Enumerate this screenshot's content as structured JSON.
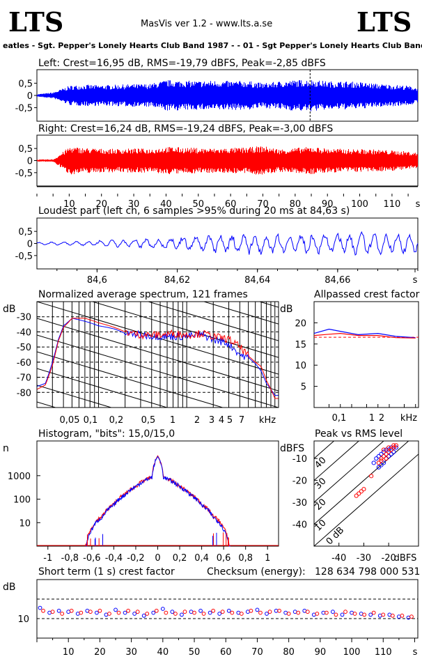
{
  "header": {
    "logo_left": "LTS",
    "logo_right": "LTS",
    "app_title": "MasVis ver 1.2 - www.lts.a.se",
    "filename": "eatles - Sgt. Pepper's Lonely Hearts Club Band 1987 -  - 01 - Sgt Pepper's Lonely Hearts Club Band.wa"
  },
  "colors": {
    "left": "#0000ff",
    "right": "#ff0000",
    "axis": "#000000",
    "grid": "#000000"
  },
  "chart_data": [
    {
      "id": "left-waveform",
      "type": "area",
      "title": "Left: Crest=16,95 dB, RMS=-19,79 dBFS, Peak=-2,85 dBFS",
      "y_ticks": [
        "0,5",
        "0",
        "-0,5"
      ],
      "ylim": [
        -1,
        1
      ],
      "xlim": [
        0,
        118
      ],
      "series": [
        {
          "x": [
            0,
            5,
            10,
            15,
            20,
            25,
            30,
            35,
            40,
            45,
            50,
            55,
            60,
            65,
            70,
            75,
            80,
            85,
            90,
            95,
            100,
            105,
            110,
            115,
            118
          ],
          "envelope": [
            0.05,
            0.12,
            0.38,
            0.42,
            0.4,
            0.42,
            0.44,
            0.45,
            0.6,
            0.58,
            0.56,
            0.58,
            0.56,
            0.57,
            0.48,
            0.55,
            0.6,
            0.62,
            0.55,
            0.55,
            0.52,
            0.46,
            0.42,
            0.38,
            0.3
          ]
        }
      ],
      "markers": [
        {
          "x": 84.63
        }
      ]
    },
    {
      "id": "right-waveform",
      "type": "area",
      "title": "Right: Crest=16,24 dB, RMS=-19,24 dBFS, Peak=-3,00 dBFS",
      "y_ticks": [
        "0,5",
        "0",
        "-0,5"
      ],
      "x_ticks": [
        "10",
        "20",
        "30",
        "40",
        "50",
        "60",
        "70",
        "80",
        "90",
        "100",
        "110",
        "s"
      ],
      "ylim": [
        -1,
        1
      ],
      "xlim": [
        0,
        118
      ],
      "series": [
        {
          "x": [
            0,
            5,
            10,
            15,
            20,
            25,
            30,
            35,
            40,
            45,
            50,
            55,
            60,
            65,
            70,
            75,
            80,
            85,
            90,
            95,
            100,
            105,
            110,
            115,
            118
          ],
          "envelope": [
            0.04,
            0.05,
            0.55,
            0.5,
            0.47,
            0.46,
            0.48,
            0.47,
            0.55,
            0.52,
            0.5,
            0.48,
            0.5,
            0.52,
            0.58,
            0.45,
            0.5,
            0.55,
            0.48,
            0.46,
            0.45,
            0.44,
            0.4,
            0.36,
            0.3
          ]
        }
      ]
    },
    {
      "id": "loudest-part",
      "type": "line",
      "title": "Loudest part (left  ch, 6 samples >95% during 20 ms at 84,63 s)",
      "y_ticks": [
        "0,5",
        "0",
        "-0,5"
      ],
      "x_ticks": [
        "84,6",
        "84,62",
        "84,64",
        "84,66",
        "s"
      ],
      "xlim": [
        84.585,
        84.68
      ],
      "ylim": [
        -1,
        1
      ],
      "series": [
        {
          "x": [
            84.585,
            84.59,
            84.595,
            84.6,
            84.605,
            84.61,
            84.615,
            84.62,
            84.625,
            84.63,
            84.635,
            84.64,
            84.645,
            84.65,
            84.655,
            84.66,
            84.665,
            84.67,
            84.675,
            84.68
          ],
          "amp": [
            0.05,
            0.07,
            0.09,
            0.12,
            0.16,
            0.18,
            0.22,
            0.28,
            0.35,
            0.42,
            0.45,
            0.45,
            0.42,
            0.4,
            0.45,
            0.5,
            0.48,
            0.45,
            0.42,
            0.4
          ]
        }
      ]
    },
    {
      "id": "average-spectrum",
      "type": "line",
      "title": "Normalized average spectrum, 121 frames",
      "ylabel": "dB",
      "xlabel": "kHz",
      "y_ticks": [
        "-30",
        "-40",
        "-50",
        "-60",
        "-70",
        "-80"
      ],
      "x_ticks": [
        "0,05",
        "0,1",
        "0,2",
        "0,5",
        "1",
        "2",
        "3",
        "4",
        "5",
        "7",
        "kHz"
      ],
      "x_scale": "log",
      "xlim": [
        0.02,
        11
      ],
      "ylim": [
        -90,
        -20
      ],
      "series": [
        {
          "name_hidden": "left",
          "x": [
            0.02,
            0.025,
            0.03,
            0.035,
            0.04,
            0.05,
            0.07,
            0.1,
            0.15,
            0.2,
            0.3,
            0.5,
            0.7,
            1,
            1.5,
            2,
            3,
            4,
            5,
            6,
            7,
            8,
            10
          ],
          "y": [
            -76,
            -74,
            -60,
            -45,
            -36,
            -31,
            -33,
            -36,
            -38,
            -41,
            -42,
            -43,
            -43,
            -43,
            -42,
            -45,
            -48,
            -55,
            -57,
            -61,
            -66,
            -74,
            -82
          ]
        },
        {
          "name_hidden": "right",
          "x": [
            0.02,
            0.025,
            0.03,
            0.035,
            0.04,
            0.05,
            0.07,
            0.1,
            0.15,
            0.2,
            0.3,
            0.5,
            0.7,
            1,
            1.5,
            2,
            3,
            4,
            5,
            6,
            7,
            8,
            10
          ],
          "y": [
            -78,
            -75,
            -62,
            -46,
            -37,
            -31,
            -31,
            -34,
            -37,
            -40,
            -42,
            -42,
            -41,
            -42,
            -41,
            -43,
            -45,
            -50,
            -56,
            -60,
            -63,
            -72,
            -84
          ]
        }
      ]
    },
    {
      "id": "allpassed-crest",
      "type": "line",
      "title": "Allpassed crest factor",
      "ylabel": "dB",
      "xlabel": "kHz",
      "y_ticks": [
        "20",
        "15",
        "10",
        "5"
      ],
      "x_ticks": [
        "0,1",
        "1",
        "2",
        "kHz"
      ],
      "x_scale": "log",
      "xlim": [
        0.02,
        12
      ],
      "ylim": [
        0,
        25
      ],
      "series": [
        {
          "x": [
            0.02,
            0.05,
            0.1,
            0.3,
            1,
            3,
            10
          ],
          "y": [
            17.5,
            18.5,
            18,
            17.2,
            17.5,
            16.8,
            16.5
          ]
        },
        {
          "x": [
            0.02,
            0.05,
            0.1,
            0.3,
            1,
            3,
            10
          ],
          "y": [
            17,
            17.3,
            17.5,
            17.0,
            17.0,
            16.5,
            16.4
          ]
        }
      ],
      "reference_lines": [
        16.6
      ]
    },
    {
      "id": "histogram",
      "type": "line",
      "title": "Histogram, \"bits\": 15,0/15,0",
      "ylabel": "n",
      "y_ticks": [
        "1000",
        "100",
        "10"
      ],
      "x_ticks": [
        "-1",
        "-0,8",
        "-0,6",
        "-0,4",
        "-0,2",
        "0",
        "0,2",
        "0,4",
        "0,6",
        "0,8",
        "1"
      ],
      "y_scale": "log",
      "xlim": [
        -1.1,
        1.1
      ],
      "ylim": [
        1,
        30000
      ],
      "series": [
        {
          "x": [
            -0.65,
            -0.6,
            -0.5,
            -0.4,
            -0.3,
            -0.2,
            -0.1,
            -0.05,
            0,
            0.05,
            0.1,
            0.2,
            0.3,
            0.4,
            0.5,
            0.6,
            0.65
          ],
          "y": [
            1,
            6,
            20,
            60,
            160,
            350,
            700,
            900,
            7000,
            900,
            700,
            350,
            160,
            60,
            20,
            6,
            1
          ]
        },
        {
          "x": [
            -0.65,
            -0.6,
            -0.5,
            -0.4,
            -0.3,
            -0.2,
            -0.1,
            -0.05,
            0,
            0.05,
            0.1,
            0.2,
            0.3,
            0.4,
            0.5,
            0.6,
            0.65
          ],
          "y": [
            1,
            5,
            18,
            55,
            150,
            340,
            680,
            880,
            6500,
            880,
            680,
            340,
            150,
            55,
            18,
            5,
            1
          ]
        }
      ]
    },
    {
      "id": "peak-vs-rms",
      "type": "scatter",
      "title": "Peak vs RMS level",
      "ylabel": "dBFS",
      "xlabel": "dBFS",
      "y_ticks": [
        "-10",
        "-20",
        "-30",
        "-40"
      ],
      "x_ticks": [
        "-40",
        "-30",
        "-20",
        "dBFS"
      ],
      "crest_labels": [
        "40",
        "30",
        "20",
        "10",
        "0 dB"
      ],
      "xlim": [
        -50,
        -8
      ],
      "ylim": [
        -50,
        -2
      ],
      "series": [
        {
          "x": [
            -26,
            -25,
            -24,
            -23,
            -22,
            -21,
            -20,
            -19,
            -18,
            -17,
            -22,
            -21,
            -20,
            -19,
            -18,
            -24,
            -23
          ],
          "y": [
            -12,
            -10,
            -9,
            -8,
            -7,
            -6,
            -6,
            -5,
            -5,
            -5,
            -12,
            -10,
            -9,
            -8,
            -7,
            -14,
            -13
          ]
        },
        {
          "x": [
            -33,
            -32,
            -31,
            -30,
            -27,
            -24,
            -23,
            -22,
            -21,
            -20,
            -19,
            -18,
            -17,
            -22,
            -20,
            -19,
            -18,
            -21,
            -23
          ],
          "y": [
            -27,
            -26,
            -25,
            -24,
            -18,
            -12,
            -10,
            -9,
            -8,
            -7,
            -6,
            -5,
            -4,
            -6,
            -5,
            -6,
            -4,
            -10,
            -11
          ]
        }
      ]
    },
    {
      "id": "short-term-crest",
      "type": "scatter",
      "title": "Short term (1 s) crest factor",
      "ylabel": "dB",
      "y_ticks": [
        "10"
      ],
      "x_ticks": [
        "10",
        "20",
        "30",
        "40",
        "50",
        "60",
        "70",
        "80",
        "90",
        "100",
        "110",
        "s"
      ],
      "xlim": [
        0,
        121
      ],
      "ylim": [
        0,
        30
      ],
      "reference_lines": [
        20,
        10
      ],
      "series": [
        {
          "x": [
            1,
            4,
            7,
            10,
            13,
            16,
            19,
            22,
            25,
            28,
            31,
            34,
            37,
            40,
            43,
            46,
            49,
            52,
            55,
            58,
            61,
            64,
            67,
            70,
            73,
            76,
            79,
            82,
            85,
            88,
            91,
            94,
            97,
            100,
            103,
            106,
            109,
            112,
            115,
            118
          ],
          "y": [
            15.5,
            13,
            14,
            13.5,
            12.5,
            14,
            13,
            12,
            14.5,
            13,
            12.5,
            11.5,
            13,
            15,
            13.5,
            12,
            13.5,
            14,
            13,
            12.5,
            14,
            13,
            13.5,
            14.5,
            12.5,
            14,
            13,
            13.5,
            14,
            12,
            13,
            13.5,
            12,
            13,
            12.5,
            12,
            11.5,
            12,
            11,
            10.5
          ]
        },
        {
          "x": [
            2,
            5,
            8,
            11,
            14,
            17,
            20,
            23,
            26,
            29,
            32,
            35,
            38,
            41,
            44,
            47,
            50,
            53,
            56,
            59,
            62,
            65,
            68,
            71,
            74,
            77,
            80,
            83,
            86,
            89,
            92,
            95,
            98,
            101,
            104,
            107,
            110,
            113,
            116,
            119
          ],
          "y": [
            14,
            13.5,
            12.5,
            14,
            13,
            13.5,
            14,
            12.5,
            13,
            14,
            13.5,
            12.5,
            14,
            13,
            12.5,
            13.5,
            13,
            12.5,
            14,
            13.5,
            13,
            12.5,
            14,
            13,
            13.5,
            14,
            12.5,
            13,
            13.5,
            12.5,
            13,
            12,
            13.5,
            12.5,
            12,
            13,
            12,
            11.5,
            11.5,
            11
          ]
        }
      ]
    }
  ],
  "checksum": {
    "label": "Checksum (energy):",
    "value": "128 634 798 000 531"
  }
}
